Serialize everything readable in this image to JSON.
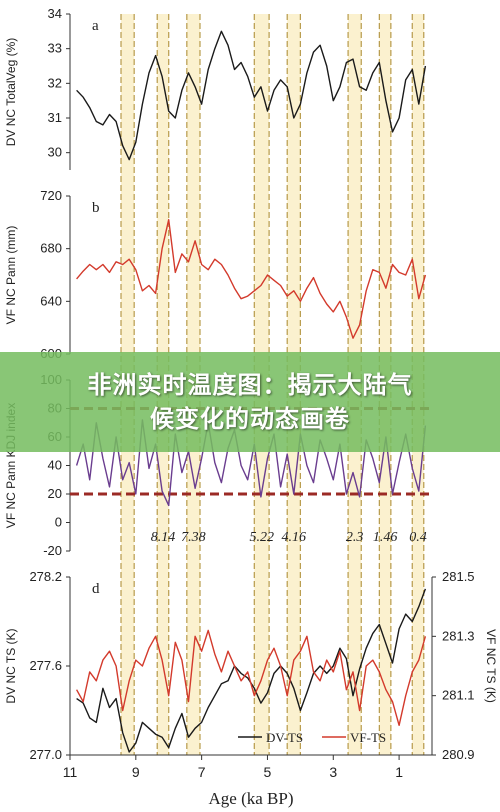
{
  "banner": {
    "line1": "非洲实时温度图：揭示大陆气",
    "line2": "候变化的动态画卷"
  },
  "colors": {
    "band_fill": "#fbf1cf",
    "band_edge": "#b79a4a",
    "black_series": "#1a1a1a",
    "red_series": "#d33a2c",
    "purple_series": "#6a3d8f",
    "threshold_line": "#9b2a25",
    "banner_bg": "#76bd60"
  },
  "chart_data": {
    "type": "line",
    "shared_x_axis": {
      "label": "Age (ka BP)",
      "ticks": [
        "11",
        "9",
        "7",
        "5",
        "3",
        "1"
      ],
      "range": [
        11,
        0
      ],
      "reversed": true
    },
    "highlight_bands_ka": [
      [
        9.45,
        9.05
      ],
      [
        8.35,
        8.0
      ],
      [
        7.45,
        7.05
      ],
      [
        5.4,
        4.95
      ],
      [
        4.4,
        4.0
      ],
      [
        2.55,
        2.15
      ],
      [
        1.6,
        1.25
      ],
      [
        0.6,
        0.25
      ]
    ],
    "panels": [
      {
        "panel_label": "a",
        "ylabel": "DV NC TotalVeg (%)",
        "ylim": [
          29.5,
          34
        ],
        "yticks": [
          "34",
          "33",
          "32",
          "31",
          "30"
        ],
        "series": [
          {
            "color": "#1a1a1a",
            "x": [
              10.8,
              10.6,
              10.4,
              10.2,
              10.0,
              9.8,
              9.6,
              9.4,
              9.2,
              9.0,
              8.8,
              8.6,
              8.4,
              8.2,
              8.0,
              7.8,
              7.6,
              7.4,
              7.2,
              7.0,
              6.8,
              6.6,
              6.4,
              6.2,
              6.0,
              5.8,
              5.6,
              5.4,
              5.2,
              5.0,
              4.8,
              4.6,
              4.4,
              4.2,
              4.0,
              3.8,
              3.6,
              3.4,
              3.2,
              3.0,
              2.8,
              2.6,
              2.4,
              2.2,
              2.0,
              1.8,
              1.6,
              1.4,
              1.2,
              1.0,
              0.8,
              0.6,
              0.4,
              0.2
            ],
            "y": [
              31.8,
              31.6,
              31.3,
              30.9,
              30.8,
              31.1,
              30.9,
              30.2,
              29.8,
              30.3,
              31.4,
              32.3,
              32.8,
              32.2,
              31.2,
              31.0,
              31.8,
              32.3,
              31.9,
              31.4,
              32.4,
              33.0,
              33.5,
              33.1,
              32.4,
              32.6,
              32.2,
              31.6,
              31.9,
              31.2,
              31.8,
              32.1,
              31.9,
              31.0,
              31.4,
              32.3,
              32.9,
              33.1,
              32.5,
              31.5,
              31.9,
              32.6,
              32.7,
              31.9,
              31.8,
              32.3,
              32.6,
              31.5,
              30.6,
              31.0,
              32.1,
              32.4,
              31.4,
              32.5
            ]
          }
        ]
      },
      {
        "panel_label": "b",
        "ylabel": "VF NC Pann (mm)",
        "ylim": [
          600,
          720
        ],
        "yticks": [
          "720",
          "680",
          "640",
          "600"
        ],
        "series": [
          {
            "color": "#d33a2c",
            "x": [
              10.8,
              10.6,
              10.4,
              10.2,
              10.0,
              9.8,
              9.6,
              9.4,
              9.2,
              9.0,
              8.8,
              8.6,
              8.4,
              8.2,
              8.0,
              7.8,
              7.6,
              7.4,
              7.2,
              7.0,
              6.8,
              6.6,
              6.4,
              6.2,
              6.0,
              5.8,
              5.6,
              5.4,
              5.2,
              5.0,
              4.8,
              4.6,
              4.4,
              4.2,
              4.0,
              3.8,
              3.6,
              3.4,
              3.2,
              3.0,
              2.8,
              2.6,
              2.4,
              2.2,
              2.0,
              1.8,
              1.6,
              1.4,
              1.2,
              1.0,
              0.8,
              0.6,
              0.4,
              0.2
            ],
            "y": [
              657,
              663,
              668,
              664,
              668,
              662,
              670,
              668,
              672,
              664,
              648,
              652,
              646,
              680,
              702,
              662,
              676,
              670,
              686,
              668,
              664,
              672,
              668,
              660,
              650,
              642,
              644,
              648,
              652,
              660,
              656,
              652,
              644,
              648,
              640,
              650,
              658,
              646,
              638,
              632,
              640,
              628,
              612,
              622,
              648,
              664,
              662,
              650,
              668,
              662,
              660,
              672,
              642,
              660
            ]
          }
        ]
      },
      {
        "panel_label": "",
        "ylabel": "VF NC Pann KDJ index",
        "ylim": [
          -20,
          100
        ],
        "yticks": [
          "100",
          "80",
          "60",
          "40",
          "20",
          "0",
          "-20"
        ],
        "threshold_lines": [
          80,
          20
        ],
        "annotations": [
          "8.14",
          "7.38",
          "5.22",
          "4.16",
          "2.3",
          "1.46",
          "0.4"
        ],
        "series": [
          {
            "color": "#6a3d8f",
            "x": [
              10.8,
              10.6,
              10.4,
              10.2,
              10.0,
              9.8,
              9.6,
              9.4,
              9.2,
              9.0,
              8.8,
              8.6,
              8.4,
              8.2,
              8.0,
              7.8,
              7.6,
              7.4,
              7.2,
              7.0,
              6.8,
              6.6,
              6.4,
              6.2,
              6.0,
              5.8,
              5.6,
              5.4,
              5.2,
              5.0,
              4.8,
              4.6,
              4.4,
              4.2,
              4.0,
              3.8,
              3.6,
              3.4,
              3.2,
              3.0,
              2.8,
              2.6,
              2.4,
              2.2,
              2.0,
              1.8,
              1.6,
              1.4,
              1.2,
              1.0,
              0.8,
              0.6,
              0.4,
              0.2
            ],
            "y": [
              40,
              55,
              30,
              70,
              45,
              25,
              60,
              30,
              42,
              20,
              72,
              38,
              55,
              22,
              12,
              62,
              35,
              50,
              24,
              45,
              70,
              42,
              28,
              52,
              65,
              40,
              30,
              55,
              18,
              45,
              62,
              25,
              48,
              20,
              62,
              40,
              28,
              58,
              45,
              30,
              55,
              20,
              35,
              18,
              58,
              45,
              28,
              60,
              20,
              42,
              62,
              38,
              22,
              68
            ]
          }
        ]
      },
      {
        "panel_label": "d",
        "ylabel": "DV NC TS (K)",
        "ylim": [
          277.0,
          278.2
        ],
        "yticks": [
          "278.2",
          "277.6",
          "277.0"
        ],
        "y2label": "VF NC TS (K)",
        "y2lim": [
          280.9,
          281.5
        ],
        "y2ticks": [
          "281.5",
          "281.3",
          "281.1",
          "280.9"
        ],
        "legend": [
          "DV-TS",
          "VF-TS"
        ],
        "series": [
          {
            "name": "DV-TS",
            "color": "#1a1a1a",
            "axis": "left",
            "x": [
              10.8,
              10.6,
              10.4,
              10.2,
              10.0,
              9.8,
              9.6,
              9.4,
              9.2,
              9.0,
              8.8,
              8.6,
              8.4,
              8.2,
              8.0,
              7.8,
              7.6,
              7.4,
              7.2,
              7.0,
              6.8,
              6.6,
              6.4,
              6.2,
              6.0,
              5.8,
              5.6,
              5.4,
              5.2,
              5.0,
              4.8,
              4.6,
              4.4,
              4.2,
              4.0,
              3.8,
              3.6,
              3.4,
              3.2,
              3.0,
              2.8,
              2.6,
              2.4,
              2.2,
              2.0,
              1.8,
              1.6,
              1.4,
              1.2,
              1.0,
              0.8,
              0.6,
              0.4,
              0.2
            ],
            "y": [
              277.38,
              277.35,
              277.25,
              277.22,
              277.45,
              277.32,
              277.38,
              277.15,
              277.02,
              277.08,
              277.22,
              277.18,
              277.14,
              277.12,
              277.05,
              277.18,
              277.28,
              277.12,
              277.18,
              277.22,
              277.32,
              277.4,
              277.48,
              277.5,
              277.6,
              277.55,
              277.52,
              277.45,
              277.35,
              277.42,
              277.55,
              277.6,
              277.55,
              277.45,
              277.3,
              277.42,
              277.55,
              277.6,
              277.55,
              277.6,
              277.72,
              277.65,
              277.4,
              277.58,
              277.72,
              277.82,
              277.88,
              277.75,
              277.62,
              277.85,
              277.95,
              277.9,
              278.0,
              278.12
            ]
          },
          {
            "name": "VF-TS",
            "color": "#d33a2c",
            "axis": "right",
            "x": [
              10.8,
              10.6,
              10.4,
              10.2,
              10.0,
              9.8,
              9.6,
              9.4,
              9.2,
              9.0,
              8.8,
              8.6,
              8.4,
              8.2,
              8.0,
              7.8,
              7.6,
              7.4,
              7.2,
              7.0,
              6.8,
              6.6,
              6.4,
              6.2,
              6.0,
              5.8,
              5.6,
              5.4,
              5.2,
              5.0,
              4.8,
              4.6,
              4.4,
              4.2,
              4.0,
              3.8,
              3.6,
              3.4,
              3.2,
              3.0,
              2.8,
              2.6,
              2.4,
              2.2,
              2.0,
              1.8,
              1.6,
              1.4,
              1.2,
              1.0,
              0.8,
              0.6,
              0.4,
              0.2
            ],
            "y": [
              281.12,
              281.08,
              281.18,
              281.15,
              281.22,
              281.25,
              281.2,
              281.05,
              281.15,
              281.22,
              281.2,
              281.26,
              281.3,
              281.22,
              281.1,
              281.28,
              281.22,
              281.08,
              281.3,
              281.25,
              281.32,
              281.24,
              281.18,
              281.25,
              281.2,
              281.15,
              281.18,
              281.1,
              281.15,
              281.22,
              281.26,
              281.2,
              281.1,
              281.22,
              281.25,
              281.3,
              281.18,
              281.15,
              281.22,
              281.18,
              281.25,
              281.12,
              281.18,
              281.05,
              281.2,
              281.22,
              281.18,
              281.12,
              281.08,
              281.0,
              281.1,
              281.18,
              281.22,
              281.3
            ]
          }
        ]
      }
    ]
  }
}
